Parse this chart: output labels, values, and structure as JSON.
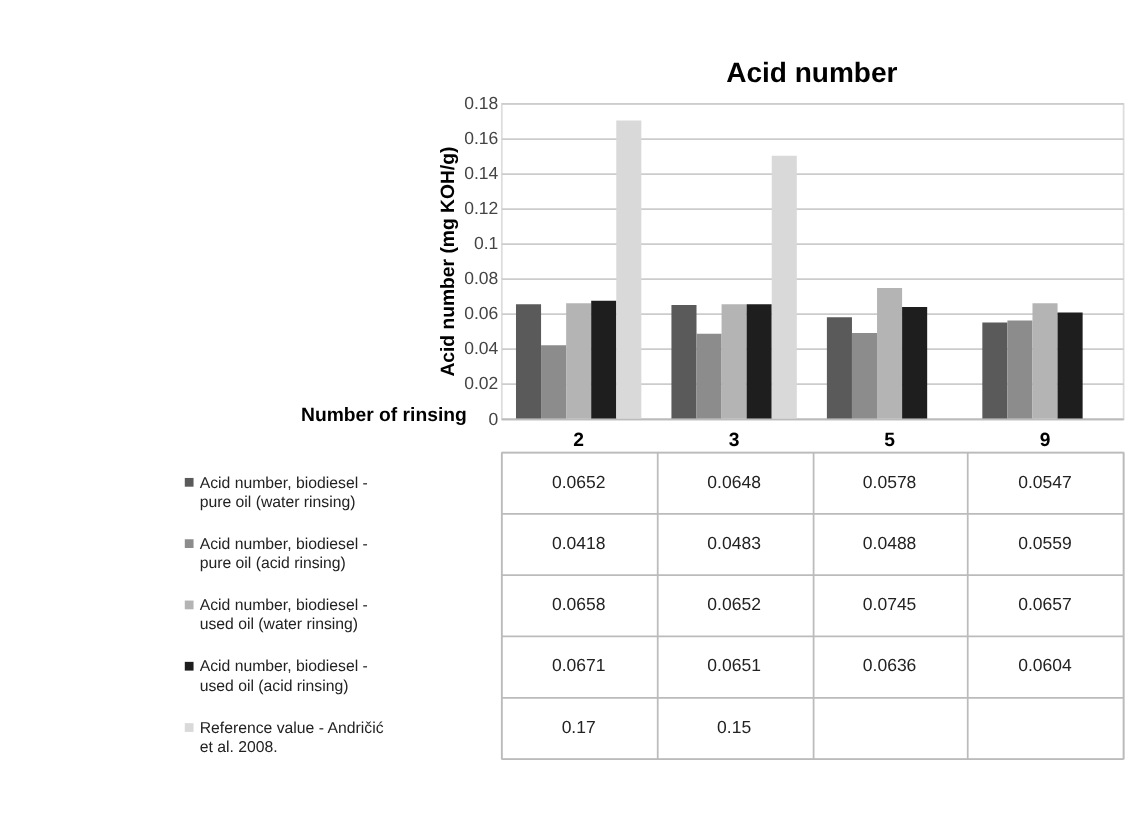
{
  "chart_data": {
    "type": "bar",
    "title": "Acid number",
    "xlabel": "Number of rinsing",
    "ylabel": "Acid number (mg KOH/g)",
    "categories": [
      "2",
      "3",
      "5",
      "9"
    ],
    "series": [
      {
        "name": "Acid number, biodiesel - pure oil (water rinsing)",
        "color": "#5a5a5a",
        "values": [
          0.0652,
          0.0648,
          0.0578,
          0.0547
        ]
      },
      {
        "name": "Acid number, biodiesel - pure oil (acid rinsing)",
        "color": "#8c8c8c",
        "values": [
          0.0418,
          0.0483,
          0.0488,
          0.0559
        ]
      },
      {
        "name": "Acid number, biodiesel - used oil (water rinsing)",
        "color": "#b4b4b4",
        "values": [
          0.0658,
          0.0652,
          0.0745,
          0.0657
        ]
      },
      {
        "name": "Acid number, biodiesel - used oil (acid rinsing)",
        "color": "#1e1e1e",
        "values": [
          0.0671,
          0.0651,
          0.0636,
          0.0604
        ]
      },
      {
        "name": "Reference value - Andričić et al. 2008.",
        "color": "#d9d9d9",
        "values": [
          0.17,
          0.15,
          null,
          null
        ]
      }
    ],
    "ylim": [
      0,
      0.18
    ],
    "yticks": [
      {
        "value": 0,
        "label": "0"
      },
      0.02,
      0.04,
      0.06,
      0.08,
      {
        "value": 0.1,
        "label": "0.1"
      },
      0.12,
      0.14,
      0.16,
      0.18
    ],
    "grid": "y",
    "legend": "bottom left",
    "data_labels": true
  }
}
